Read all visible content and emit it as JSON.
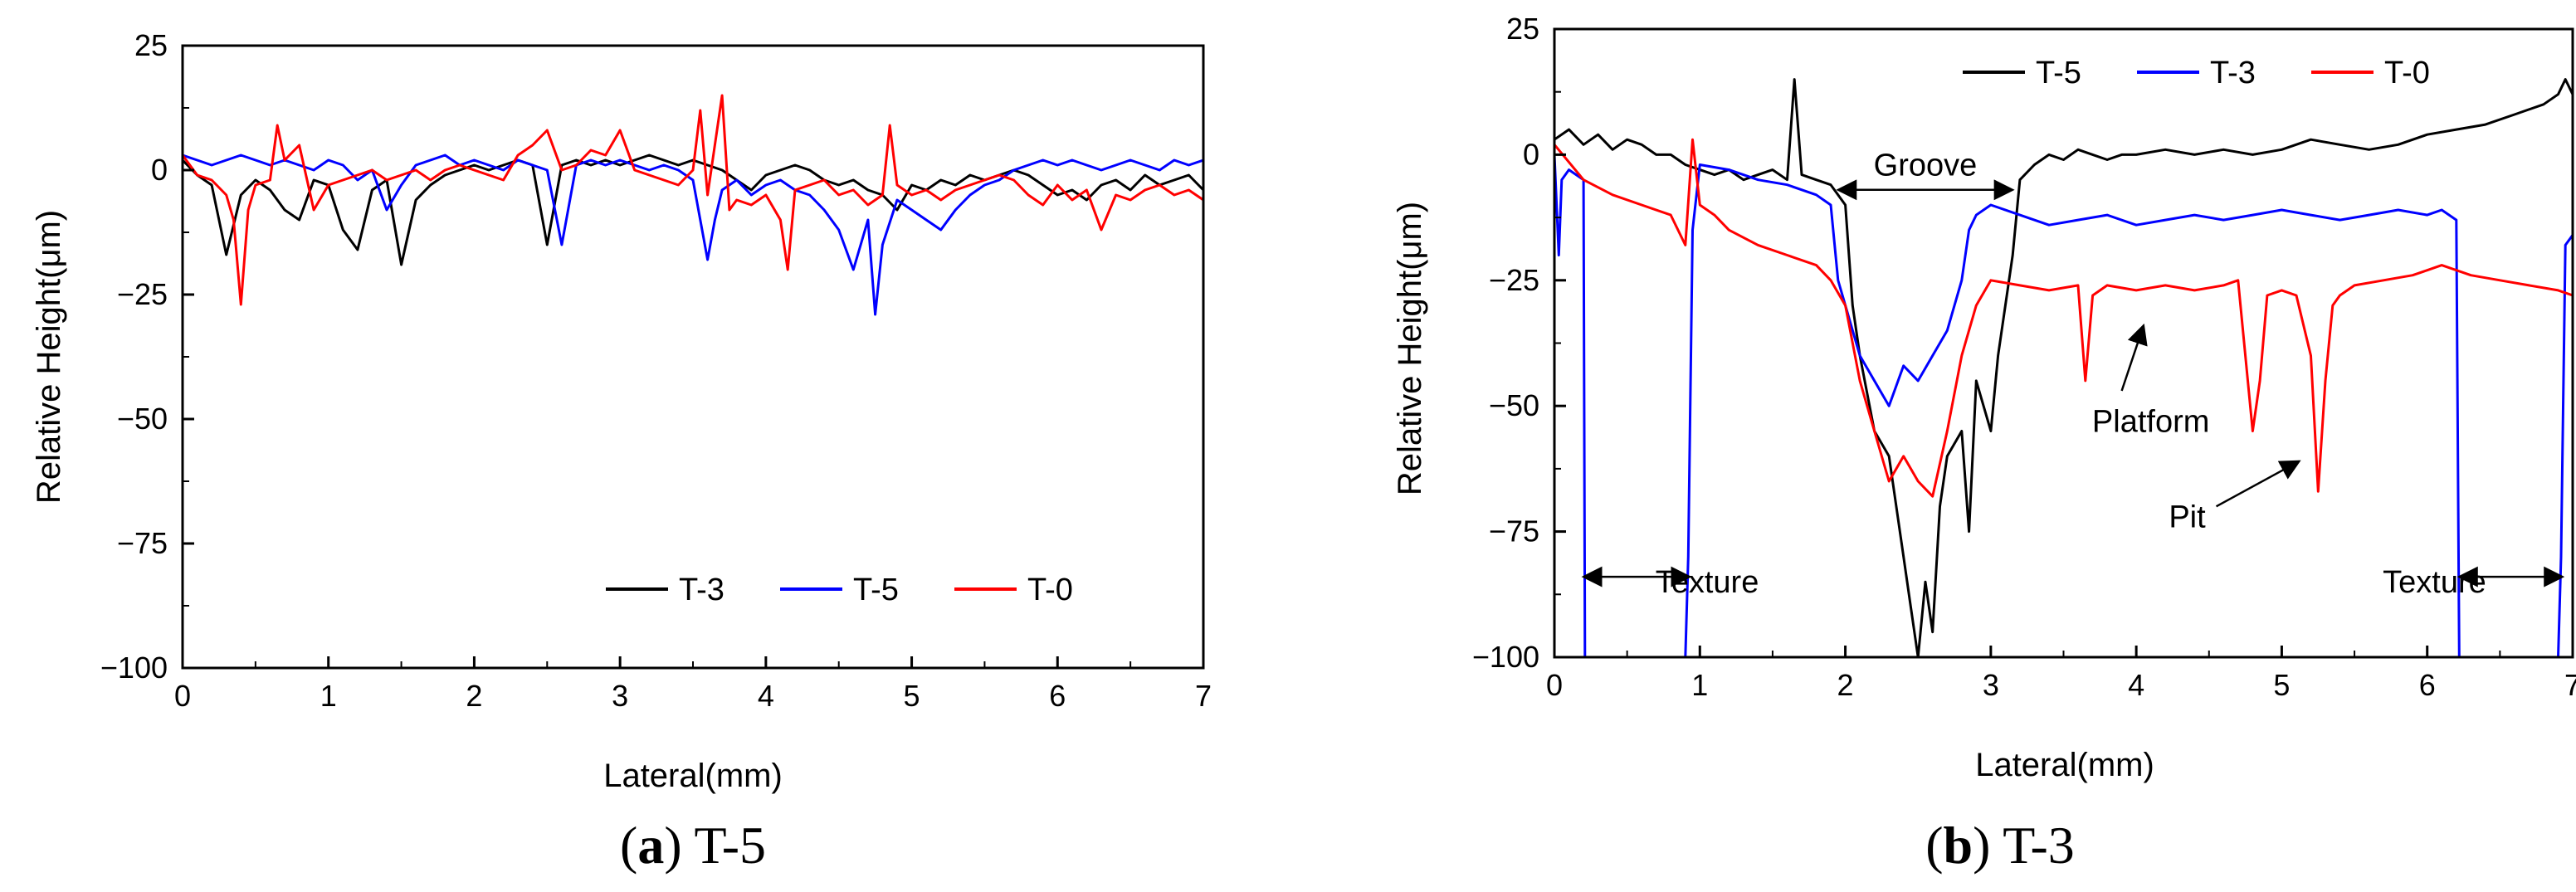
{
  "chart_data": [
    {
      "type": "line",
      "panel": "a",
      "caption_letter": "a",
      "caption_text": " T-5",
      "xlabel": "Lateral(mm)",
      "ylabel": "Relative Height(μm)",
      "xlim": [
        0,
        7
      ],
      "ylim": [
        -100,
        25
      ],
      "xticks": [
        0,
        1,
        2,
        3,
        4,
        5,
        6,
        7
      ],
      "yticks": [
        25,
        0,
        -25,
        -50,
        -75,
        -100
      ],
      "legend_position": "bottom-right",
      "series": [
        {
          "name": "T-3",
          "color": "#000000",
          "x": [
            0,
            0.1,
            0.2,
            0.3,
            0.4,
            0.5,
            0.6,
            0.7,
            0.8,
            0.9,
            1.0,
            1.1,
            1.2,
            1.3,
            1.4,
            1.5,
            1.6,
            1.7,
            1.8,
            1.9,
            2.0,
            2.1,
            2.2,
            2.3,
            2.4,
            2.5,
            2.6,
            2.7,
            2.8,
            2.9,
            3.0,
            3.1,
            3.2,
            3.3,
            3.4,
            3.5,
            3.6,
            3.7,
            3.8,
            3.9,
            4.0,
            4.1,
            4.2,
            4.3,
            4.4,
            4.5,
            4.6,
            4.7,
            4.8,
            4.9,
            5.0,
            5.1,
            5.2,
            5.3,
            5.4,
            5.5,
            5.6,
            5.7,
            5.8,
            5.9,
            6.0,
            6.1,
            6.2,
            6.3,
            6.4,
            6.5,
            6.6,
            6.7,
            6.8,
            6.9,
            7.0
          ],
          "y": [
            2,
            -1,
            -3,
            -17,
            -5,
            -2,
            -4,
            -8,
            -10,
            -2,
            -3,
            -12,
            -16,
            -4,
            -2,
            -19,
            -6,
            -3,
            -1,
            0,
            1,
            0,
            1,
            2,
            1,
            -15,
            1,
            2,
            1,
            2,
            1,
            2,
            3,
            2,
            1,
            2,
            1,
            0,
            -2,
            -4,
            -1,
            0,
            1,
            0,
            -2,
            -3,
            -2,
            -4,
            -5,
            -8,
            -3,
            -4,
            -2,
            -3,
            -1,
            -2,
            -1,
            0,
            -1,
            -3,
            -5,
            -4,
            -6,
            -3,
            -2,
            -4,
            -1,
            -3,
            -2,
            -1,
            -4
          ]
        },
        {
          "name": "T-5",
          "color": "#0000ff",
          "x": [
            0,
            0.1,
            0.2,
            0.3,
            0.4,
            0.5,
            0.6,
            0.7,
            0.8,
            0.9,
            1.0,
            1.1,
            1.2,
            1.3,
            1.4,
            1.5,
            1.6,
            1.7,
            1.8,
            1.9,
            2.0,
            2.1,
            2.2,
            2.3,
            2.4,
            2.5,
            2.6,
            2.7,
            2.8,
            2.9,
            3.0,
            3.1,
            3.2,
            3.3,
            3.4,
            3.5,
            3.6,
            3.65,
            3.7,
            3.8,
            3.9,
            4.0,
            4.1,
            4.2,
            4.3,
            4.4,
            4.5,
            4.6,
            4.7,
            4.75,
            4.8,
            4.9,
            5.0,
            5.1,
            5.2,
            5.3,
            5.4,
            5.5,
            5.6,
            5.7,
            5.8,
            5.9,
            6.0,
            6.1,
            6.2,
            6.3,
            6.4,
            6.5,
            6.6,
            6.7,
            6.8,
            6.9,
            7.0
          ],
          "y": [
            3,
            2,
            1,
            2,
            3,
            2,
            1,
            2,
            1,
            0,
            2,
            1,
            -2,
            0,
            -8,
            -3,
            1,
            2,
            3,
            1,
            2,
            1,
            0,
            2,
            1,
            0,
            -15,
            1,
            2,
            1,
            2,
            1,
            0,
            1,
            0,
            -2,
            -18,
            -10,
            -4,
            -2,
            -5,
            -3,
            -2,
            -4,
            -5,
            -8,
            -12,
            -20,
            -10,
            -29,
            -15,
            -6,
            -8,
            -10,
            -12,
            -8,
            -5,
            -3,
            -2,
            0,
            1,
            2,
            1,
            2,
            1,
            0,
            1,
            2,
            1,
            0,
            2,
            1,
            2
          ]
        },
        {
          "name": "T-0",
          "color": "#ff0000",
          "x": [
            0,
            0.1,
            0.2,
            0.3,
            0.35,
            0.4,
            0.45,
            0.5,
            0.6,
            0.65,
            0.7,
            0.8,
            0.9,
            1.0,
            1.1,
            1.2,
            1.3,
            1.4,
            1.5,
            1.6,
            1.7,
            1.8,
            1.9,
            2.0,
            2.1,
            2.2,
            2.3,
            2.4,
            2.5,
            2.6,
            2.7,
            2.8,
            2.9,
            3.0,
            3.1,
            3.2,
            3.3,
            3.4,
            3.5,
            3.55,
            3.6,
            3.7,
            3.75,
            3.8,
            3.9,
            4.0,
            4.1,
            4.15,
            4.2,
            4.3,
            4.4,
            4.5,
            4.6,
            4.7,
            4.8,
            4.85,
            4.9,
            5.0,
            5.1,
            5.2,
            5.3,
            5.4,
            5.5,
            5.6,
            5.7,
            5.8,
            5.9,
            6.0,
            6.1,
            6.2,
            6.3,
            6.4,
            6.5,
            6.6,
            6.7,
            6.8,
            6.9,
            7.0
          ],
          "y": [
            3,
            -1,
            -2,
            -5,
            -10,
            -27,
            -8,
            -3,
            -2,
            9,
            2,
            5,
            -8,
            -3,
            -2,
            -1,
            0,
            -2,
            -1,
            0,
            -2,
            0,
            1,
            0,
            -1,
            -2,
            3,
            5,
            8,
            0,
            1,
            4,
            3,
            8,
            0,
            -1,
            -2,
            -3,
            0,
            12,
            -5,
            15,
            -8,
            -6,
            -7,
            -5,
            -10,
            -20,
            -4,
            -3,
            -2,
            -5,
            -4,
            -7,
            -5,
            9,
            -3,
            -5,
            -4,
            -6,
            -4,
            -3,
            -2,
            -1,
            -2,
            -5,
            -7,
            -3,
            -6,
            -4,
            -12,
            -5,
            -6,
            -4,
            -3,
            -5,
            -4,
            -6
          ]
        }
      ]
    },
    {
      "type": "line",
      "panel": "b",
      "caption_letter": "b",
      "caption_text": " T-3",
      "xlabel": "Lateral(mm)",
      "ylabel": "Relative Height(μm)",
      "xlim": [
        0,
        7
      ],
      "ylim": [
        -100,
        25
      ],
      "xticks": [
        0,
        1,
        2,
        3,
        4,
        5,
        6,
        7
      ],
      "yticks": [
        25,
        0,
        -25,
        -50,
        -75,
        -100
      ],
      "legend_position": "top-right",
      "annotations": [
        {
          "text": "Groove",
          "x": 2.55,
          "y": -2
        },
        {
          "text": "Platform",
          "x": 4.1,
          "y": -53
        },
        {
          "text": "Pit",
          "x": 4.35,
          "y": -72
        },
        {
          "text": "Texture",
          "x": 1.05,
          "y": -85
        },
        {
          "text": "Texture",
          "x": 6.05,
          "y": -85
        }
      ],
      "series": [
        {
          "name": "T-5",
          "color": "#000000",
          "x": [
            0,
            0.1,
            0.2,
            0.3,
            0.4,
            0.5,
            0.6,
            0.7,
            0.8,
            0.9,
            1.0,
            1.1,
            1.2,
            1.3,
            1.4,
            1.5,
            1.6,
            1.65,
            1.7,
            1.8,
            1.9,
            2.0,
            2.05,
            2.1,
            2.2,
            2.3,
            2.4,
            2.45,
            2.5,
            2.55,
            2.6,
            2.65,
            2.7,
            2.8,
            2.85,
            2.9,
            3.0,
            3.05,
            3.1,
            3.15,
            3.2,
            3.3,
            3.4,
            3.5,
            3.6,
            3.7,
            3.8,
            3.9,
            4.0,
            4.2,
            4.4,
            4.6,
            4.8,
            5.0,
            5.2,
            5.4,
            5.6,
            5.8,
            6.0,
            6.2,
            6.4,
            6.6,
            6.8,
            6.9,
            6.95,
            7.0
          ],
          "y": [
            3,
            5,
            2,
            4,
            1,
            3,
            2,
            0,
            0,
            -2,
            -3,
            -4,
            -3,
            -5,
            -4,
            -3,
            -5,
            15,
            -4,
            -5,
            -6,
            -10,
            -30,
            -40,
            -55,
            -60,
            -80,
            -90,
            -100,
            -85,
            -95,
            -70,
            -60,
            -55,
            -75,
            -45,
            -55,
            -40,
            -30,
            -20,
            -5,
            -2,
            0,
            -1,
            1,
            0,
            -1,
            0,
            0,
            1,
            0,
            1,
            0,
            1,
            3,
            2,
            1,
            2,
            4,
            5,
            6,
            8,
            10,
            12,
            15,
            12
          ]
        },
        {
          "name": "T-3",
          "color": "#0000ff",
          "x": [
            0,
            0.03,
            0.05,
            0.1,
            0.2,
            0.21,
            0.3,
            0.5,
            0.7,
            0.9,
            0.92,
            0.95,
            1.0,
            1.2,
            1.4,
            1.6,
            1.8,
            1.9,
            1.95,
            2.0,
            2.1,
            2.2,
            2.3,
            2.4,
            2.5,
            2.6,
            2.7,
            2.8,
            2.85,
            2.9,
            3.0,
            3.2,
            3.4,
            3.6,
            3.8,
            4.0,
            4.2,
            4.4,
            4.6,
            4.8,
            5.0,
            5.2,
            5.4,
            5.6,
            5.8,
            6.0,
            6.1,
            6.2,
            6.22,
            6.5,
            6.8,
            6.9,
            6.92,
            6.95,
            7.0
          ],
          "y": [
            0,
            -20,
            -5,
            -3,
            -5,
            -100,
            -100,
            -100,
            -100,
            -100,
            -80,
            -15,
            -2,
            -3,
            -5,
            -6,
            -8,
            -10,
            -25,
            -30,
            -40,
            -45,
            -50,
            -42,
            -45,
            -40,
            -35,
            -25,
            -15,
            -12,
            -10,
            -12,
            -14,
            -13,
            -12,
            -14,
            -13,
            -12,
            -13,
            -12,
            -11,
            -12,
            -13,
            -12,
            -11,
            -12,
            -11,
            -13,
            -100,
            -100,
            -100,
            -100,
            -80,
            -18,
            -16
          ]
        },
        {
          "name": "T-0",
          "color": "#ff0000",
          "x": [
            0,
            0.2,
            0.4,
            0.6,
            0.8,
            0.9,
            0.95,
            1.0,
            1.1,
            1.2,
            1.4,
            1.6,
            1.8,
            1.9,
            2.0,
            2.1,
            2.2,
            2.3,
            2.4,
            2.5,
            2.6,
            2.7,
            2.8,
            2.9,
            3.0,
            3.2,
            3.4,
            3.6,
            3.65,
            3.7,
            3.8,
            4.0,
            4.2,
            4.4,
            4.6,
            4.7,
            4.8,
            4.85,
            4.9,
            5.0,
            5.1,
            5.2,
            5.25,
            5.3,
            5.35,
            5.4,
            5.5,
            5.7,
            5.9,
            6.0,
            6.1,
            6.3,
            6.5,
            6.7,
            6.9,
            7.0
          ],
          "y": [
            2,
            -5,
            -8,
            -10,
            -12,
            -18,
            3,
            -10,
            -12,
            -15,
            -18,
            -20,
            -22,
            -25,
            -30,
            -45,
            -55,
            -65,
            -60,
            -65,
            -68,
            -55,
            -40,
            -30,
            -25,
            -26,
            -27,
            -26,
            -45,
            -28,
            -26,
            -27,
            -26,
            -27,
            -26,
            -25,
            -55,
            -45,
            -28,
            -27,
            -28,
            -40,
            -67,
            -45,
            -30,
            -28,
            -26,
            -25,
            -24,
            -23,
            -22,
            -24,
            -25,
            -26,
            -27,
            -28
          ]
        }
      ]
    }
  ]
}
